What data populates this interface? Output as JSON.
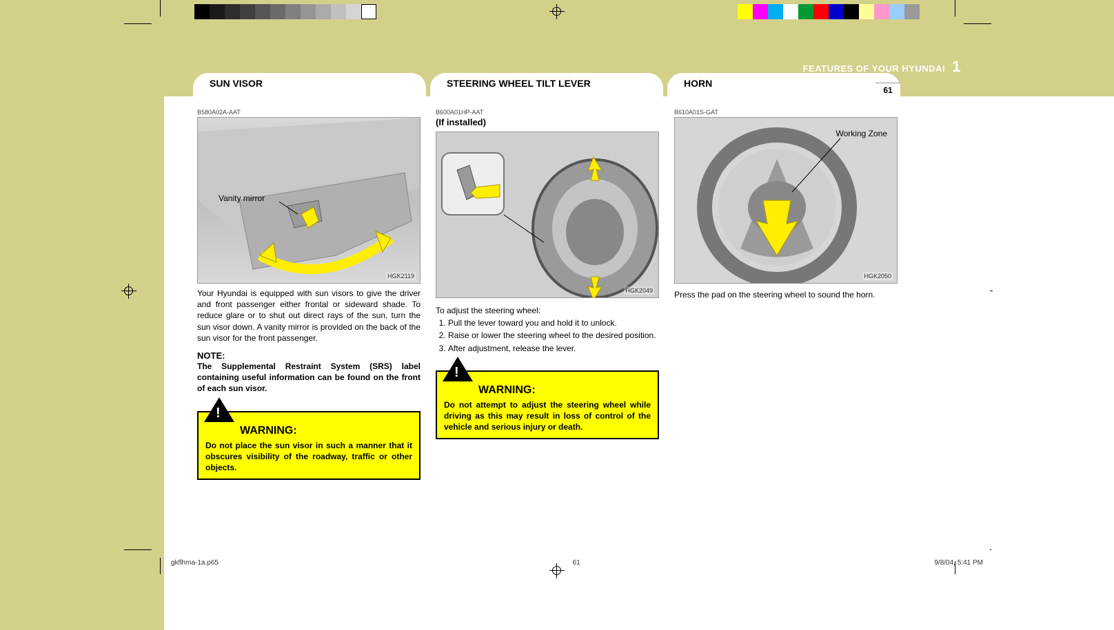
{
  "page": {
    "background_olive": "#d3d08a",
    "chapter_label": "FEATURES OF YOUR HYUNDAI",
    "chapter_number": "1",
    "page_number": "61"
  },
  "colorbar_gray": [
    "#000000",
    "#1a1a1a",
    "#2d2d2d",
    "#404040",
    "#555555",
    "#6a6a6a",
    "#808080",
    "#959595",
    "#aaaaaa",
    "#bfbfbf",
    "#d5d5d5",
    "#ffffff"
  ],
  "colorbar_cmyk": [
    "#ffff00",
    "#ff00ff",
    "#00aeef",
    "#ffffff",
    "#009933",
    "#ff0000",
    "#0000cc",
    "#000000",
    "#ffff99",
    "#ff99cc",
    "#99ccff",
    "#999999"
  ],
  "tabs": {
    "t1": "SUN VISOR",
    "t2": "STEERING WHEEL TILT LEVER",
    "t3": "HORN"
  },
  "col1": {
    "code": "B580A02A-AAT",
    "fig_annot": "Vanity mirror",
    "fig_id": "HGK2119",
    "body": "Your Hyundai is equipped with sun visors to give the driver and front passenger either frontal or sideward shade. To reduce glare or to shut out direct rays of the sun, turn the sun visor down. A vanity mirror is provided on the back of the sun visor for the front passenger.",
    "note_head": "NOTE:",
    "note_body": "The Supplemental Restraint System (SRS) label containing useful information can be found on the front of each sun visor.",
    "warn_title": "WARNING:",
    "warn_body": "Do not place the sun visor in such a manner that it obscures visibility of the roadway, traffic or other objects."
  },
  "col2": {
    "code": "B600A01HP-AAT",
    "subtitle": "(If installed)",
    "fig_id": "HGK2049",
    "intro": "To adjust the steering wheel:",
    "steps": [
      "Pull the lever toward you and hold it to unlock.",
      "Raise or lower the steering wheel to the desired position.",
      "After adjustment, release the lever."
    ],
    "warn_title": "WARNING:",
    "warn_body": "Do not attempt to adjust the steering wheel while driving as this may result in loss of control of the vehicle and serious injury or death."
  },
  "col3": {
    "code": "B610A01S-GAT",
    "fig_annot": "Working Zone",
    "fig_id": "HGK2050",
    "body": "Press the pad on the steering wheel to sound the horn."
  },
  "footer": {
    "file": "gkflhma-1a.p65",
    "page": "61",
    "date": "9/8/04, 5:41 PM"
  }
}
